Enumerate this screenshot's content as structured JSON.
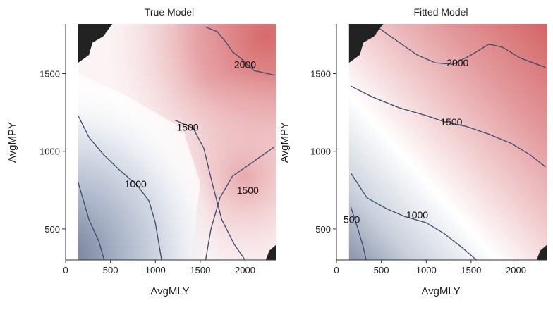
{
  "chart_data": [
    {
      "type": "contour",
      "title": "True Model",
      "xlabel": "AvgMLY",
      "ylabel": "AvgMPY",
      "xlim": [
        0,
        2350
      ],
      "ylim": [
        300,
        1820
      ],
      "x_ticks": [
        0,
        500,
        1000,
        1500,
        2000
      ],
      "y_ticks": [
        500,
        1000,
        1500
      ],
      "x_tick_labels": [
        "0",
        "500",
        "1000",
        "1500",
        "2000"
      ],
      "y_tick_labels": [
        "500",
        "1000",
        "1500"
      ],
      "colors": {
        "low": "#7d8aa5",
        "mid": "#ffffff",
        "high": "#d66a6a"
      },
      "contour_lines": [
        {
          "level": 500,
          "label": "",
          "points": [
            [
              140,
              800
            ],
            [
              260,
              560
            ],
            [
              370,
              420
            ],
            [
              430,
              300
            ]
          ]
        },
        {
          "level": 1000,
          "label": "1000",
          "points": [
            [
              140,
              1230
            ],
            [
              260,
              1090
            ],
            [
              420,
              980
            ],
            [
              600,
              880
            ],
            [
              800,
              780
            ],
            [
              930,
              680
            ],
            [
              1000,
              540
            ],
            [
              1070,
              300
            ]
          ]
        },
        {
          "level": 1500,
          "label": "1500",
          "points": [
            [
              1220,
              1200
            ],
            [
              1420,
              1150
            ],
            [
              1540,
              1020
            ],
            [
              1640,
              780
            ],
            [
              1740,
              560
            ],
            [
              1880,
              400
            ],
            [
              2000,
              300
            ]
          ]
        },
        {
          "level": 1500,
          "label": "1500",
          "points": [
            [
              1560,
              300
            ],
            [
              1620,
              500
            ],
            [
              1720,
              700
            ],
            [
              1860,
              840
            ],
            [
              2060,
              920
            ],
            [
              2330,
              1030
            ]
          ]
        },
        {
          "level": 2000,
          "label": "2000",
          "points": [
            [
              1560,
              1800
            ],
            [
              1690,
              1770
            ],
            [
              1790,
              1700
            ],
            [
              1860,
              1640
            ],
            [
              1950,
              1600
            ],
            [
              2100,
              1520
            ],
            [
              2250,
              1500
            ],
            [
              2330,
              1490
            ]
          ]
        }
      ],
      "contour_labels": [
        {
          "text": "1000",
          "x": 780,
          "y": 790
        },
        {
          "text": "1500",
          "x": 1360,
          "y": 1155
        },
        {
          "text": "1500",
          "x": 2030,
          "y": 750
        },
        {
          "text": "2000",
          "x": 2000,
          "y": 1560
        }
      ]
    },
    {
      "type": "contour",
      "title": "Fitted Model",
      "xlabel": "AvgMLY",
      "ylabel": "AvgMPY",
      "xlim": [
        0,
        2350
      ],
      "ylim": [
        300,
        1820
      ],
      "x_ticks": [
        0,
        500,
        1000,
        1500,
        2000
      ],
      "y_ticks": [
        500,
        1000,
        1500
      ],
      "x_tick_labels": [
        "0",
        "500",
        "1000",
        "1500",
        "2000"
      ],
      "y_tick_labels": [
        "500",
        "1000",
        "1500"
      ],
      "colors": {
        "low": "#7d8aa5",
        "mid": "#ffffff",
        "high": "#d66a6a"
      },
      "contour_lines": [
        {
          "level": 500,
          "label": "500",
          "points": [
            [
              160,
              640
            ],
            [
              240,
              500
            ],
            [
              300,
              380
            ],
            [
              330,
              300
            ]
          ]
        },
        {
          "level": 1000,
          "label": "1000",
          "points": [
            [
              160,
              860
            ],
            [
              340,
              700
            ],
            [
              560,
              630
            ],
            [
              760,
              580
            ],
            [
              1000,
              540
            ],
            [
              1200,
              470
            ],
            [
              1400,
              380
            ],
            [
              1560,
              300
            ]
          ]
        },
        {
          "level": 1500,
          "label": "1500",
          "points": [
            [
              160,
              1420
            ],
            [
              400,
              1350
            ],
            [
              700,
              1280
            ],
            [
              1000,
              1230
            ],
            [
              1200,
              1190
            ],
            [
              1450,
              1160
            ],
            [
              1700,
              1110
            ],
            [
              1950,
              1050
            ],
            [
              2150,
              980
            ],
            [
              2330,
              900
            ]
          ]
        },
        {
          "level": 2000,
          "label": "2000",
          "points": [
            [
              480,
              1790
            ],
            [
              700,
              1700
            ],
            [
              900,
              1620
            ],
            [
              1100,
              1570
            ],
            [
              1300,
              1560
            ],
            [
              1500,
              1620
            ],
            [
              1700,
              1690
            ],
            [
              1850,
              1670
            ],
            [
              2050,
              1600
            ],
            [
              2330,
              1540
            ]
          ]
        }
      ],
      "contour_labels": [
        {
          "text": "500",
          "x": 170,
          "y": 560
        },
        {
          "text": "1000",
          "x": 900,
          "y": 590
        },
        {
          "text": "1500",
          "x": 1280,
          "y": 1190
        },
        {
          "text": "2000",
          "x": 1350,
          "y": 1570
        }
      ]
    }
  ]
}
